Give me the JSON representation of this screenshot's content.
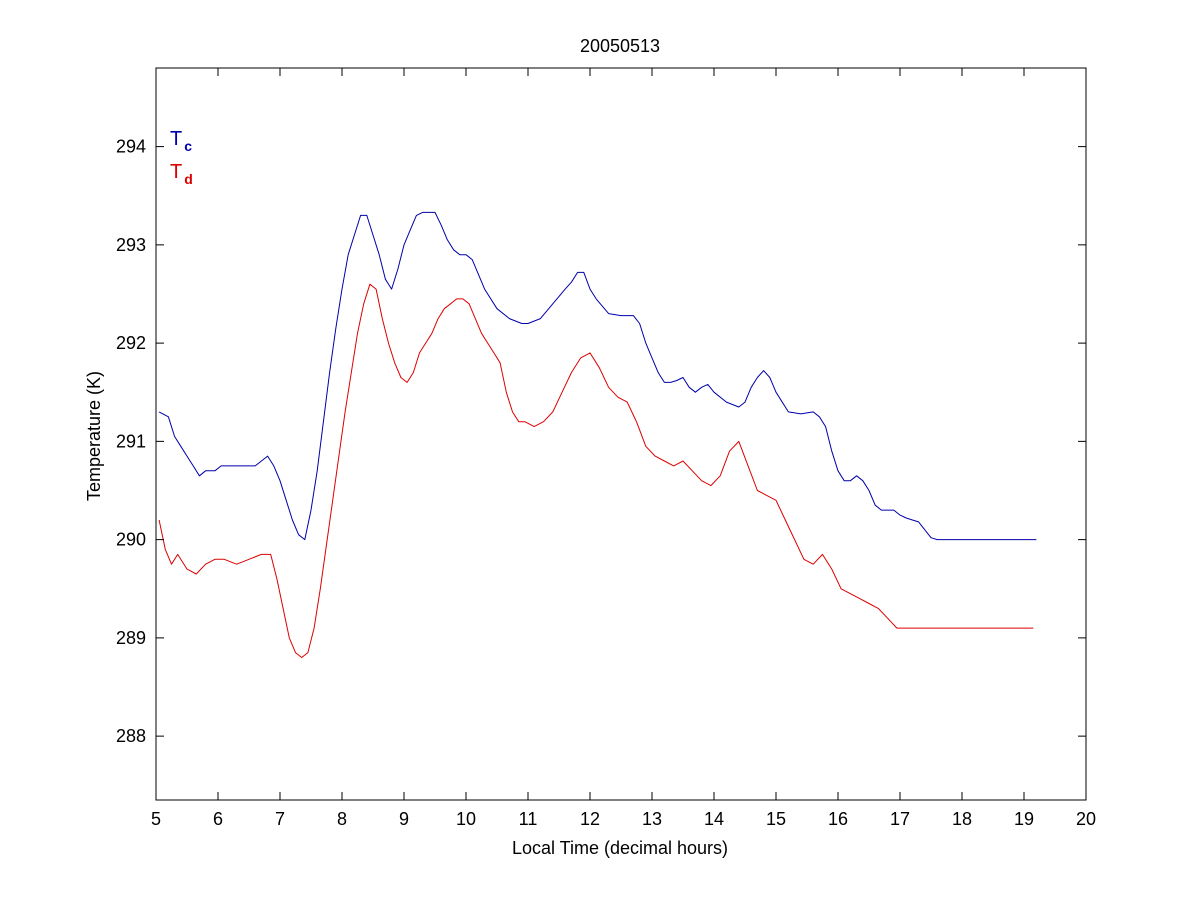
{
  "chart_data": {
    "type": "line",
    "title": "20050513",
    "xlabel": "Local Time (decimal hours)",
    "ylabel": "Temperature (K)",
    "xlim": [
      5,
      20
    ],
    "ylim": [
      287.35,
      294.8
    ],
    "xticks": [
      5,
      6,
      7,
      8,
      9,
      10,
      11,
      12,
      13,
      14,
      15,
      16,
      17,
      18,
      19,
      20
    ],
    "yticks": [
      288,
      289,
      290,
      291,
      292,
      293,
      294
    ],
    "grid": false,
    "legend_position": "top-left",
    "series": [
      {
        "name": "Tc",
        "legend_main": "T",
        "legend_sub": "c",
        "color": "#0000aa",
        "x": [
          5.05,
          5.2,
          5.3,
          5.4,
          5.5,
          5.6,
          5.7,
          5.8,
          5.95,
          6.05,
          6.2,
          6.4,
          6.6,
          6.8,
          6.9,
          7.0,
          7.1,
          7.2,
          7.3,
          7.4,
          7.5,
          7.6,
          7.7,
          7.8,
          7.9,
          8.0,
          8.1,
          8.2,
          8.3,
          8.4,
          8.5,
          8.6,
          8.7,
          8.8,
          8.9,
          9.0,
          9.1,
          9.2,
          9.3,
          9.4,
          9.5,
          9.6,
          9.7,
          9.8,
          9.9,
          10.0,
          10.1,
          10.2,
          10.3,
          10.5,
          10.7,
          10.9,
          11.0,
          11.2,
          11.4,
          11.6,
          11.7,
          11.8,
          11.9,
          12.0,
          12.1,
          12.3,
          12.5,
          12.7,
          12.8,
          12.9,
          13.0,
          13.1,
          13.2,
          13.3,
          13.4,
          13.5,
          13.6,
          13.7,
          13.8,
          13.9,
          14.0,
          14.2,
          14.4,
          14.5,
          14.6,
          14.7,
          14.8,
          14.9,
          15.0,
          15.2,
          15.4,
          15.6,
          15.7,
          15.8,
          15.9,
          16.0,
          16.1,
          16.2,
          16.3,
          16.4,
          16.5,
          16.6,
          16.7,
          16.8,
          16.9,
          17.0,
          17.1,
          17.2,
          17.3,
          17.4,
          17.5,
          17.6,
          17.7,
          17.8,
          17.9,
          18.0,
          18.1,
          18.2,
          18.3,
          18.4,
          18.6,
          18.8,
          18.9,
          19.0,
          19.1,
          19.2
        ],
        "values": [
          291.3,
          291.25,
          291.05,
          290.95,
          290.85,
          290.75,
          290.65,
          290.7,
          290.7,
          290.75,
          290.75,
          290.75,
          290.75,
          290.85,
          290.75,
          290.6,
          290.4,
          290.2,
          290.05,
          290.0,
          290.3,
          290.7,
          291.2,
          291.7,
          292.15,
          292.55,
          292.9,
          293.1,
          293.3,
          293.3,
          293.1,
          292.9,
          292.65,
          292.55,
          292.75,
          293.0,
          293.15,
          293.3,
          293.33,
          293.33,
          293.33,
          293.2,
          293.05,
          292.95,
          292.9,
          292.9,
          292.85,
          292.7,
          292.55,
          292.35,
          292.25,
          292.2,
          292.2,
          292.25,
          292.4,
          292.55,
          292.62,
          292.72,
          292.72,
          292.55,
          292.45,
          292.3,
          292.28,
          292.28,
          292.2,
          292.0,
          291.85,
          291.7,
          291.6,
          291.6,
          291.62,
          291.65,
          291.55,
          291.5,
          291.55,
          291.58,
          291.5,
          291.4,
          291.35,
          291.4,
          291.55,
          291.65,
          291.72,
          291.65,
          291.5,
          291.3,
          291.28,
          291.3,
          291.25,
          291.15,
          290.9,
          290.7,
          290.6,
          290.6,
          290.65,
          290.6,
          290.5,
          290.35,
          290.3,
          290.3,
          290.3,
          290.25,
          290.22,
          290.2,
          290.18,
          290.1,
          290.02,
          290.0,
          290.0,
          290.0,
          290.0,
          290.0,
          290.0,
          290.0,
          290.0,
          290.0,
          290.0,
          290.0,
          290.0,
          290.0,
          290.0,
          290.0
        ]
      },
      {
        "name": "Td",
        "legend_main": "T",
        "legend_sub": "d",
        "color": "#dd0000",
        "x": [
          5.05,
          5.15,
          5.25,
          5.35,
          5.5,
          5.65,
          5.8,
          5.95,
          6.1,
          6.3,
          6.5,
          6.7,
          6.85,
          6.95,
          7.05,
          7.15,
          7.25,
          7.35,
          7.45,
          7.55,
          7.65,
          7.75,
          7.85,
          7.95,
          8.05,
          8.15,
          8.25,
          8.35,
          8.45,
          8.55,
          8.65,
          8.75,
          8.85,
          8.95,
          9.05,
          9.15,
          9.25,
          9.35,
          9.45,
          9.55,
          9.65,
          9.75,
          9.85,
          9.95,
          10.05,
          10.15,
          10.25,
          10.35,
          10.45,
          10.55,
          10.65,
          10.75,
          10.85,
          10.95,
          11.1,
          11.25,
          11.4,
          11.55,
          11.7,
          11.85,
          12.0,
          12.15,
          12.3,
          12.45,
          12.6,
          12.75,
          12.9,
          13.05,
          13.2,
          13.35,
          13.5,
          13.65,
          13.8,
          13.95,
          14.1,
          14.25,
          14.4,
          14.55,
          14.7,
          14.85,
          15.0,
          15.15,
          15.3,
          15.45,
          15.6,
          15.75,
          15.9,
          16.05,
          16.2,
          16.35,
          16.5,
          16.65,
          16.8,
          16.95,
          17.1,
          17.25,
          17.4,
          17.55,
          17.7,
          17.85,
          18.0,
          18.15,
          18.3,
          18.45,
          18.6,
          18.75,
          18.9,
          19.05,
          19.15
        ],
        "values": [
          290.2,
          289.9,
          289.75,
          289.85,
          289.7,
          289.65,
          289.75,
          289.8,
          289.8,
          289.75,
          289.8,
          289.85,
          289.85,
          289.6,
          289.3,
          289.0,
          288.85,
          288.8,
          288.85,
          289.1,
          289.5,
          289.95,
          290.4,
          290.85,
          291.3,
          291.7,
          292.1,
          292.4,
          292.6,
          292.55,
          292.25,
          292.0,
          291.8,
          291.65,
          291.6,
          291.7,
          291.9,
          292.0,
          292.1,
          292.25,
          292.35,
          292.4,
          292.45,
          292.45,
          292.4,
          292.25,
          292.1,
          292.0,
          291.9,
          291.8,
          291.5,
          291.3,
          291.2,
          291.2,
          291.15,
          291.2,
          291.3,
          291.5,
          291.7,
          291.85,
          291.9,
          291.75,
          291.55,
          291.45,
          291.4,
          291.2,
          290.95,
          290.85,
          290.8,
          290.75,
          290.8,
          290.7,
          290.6,
          290.55,
          290.65,
          290.9,
          291.0,
          290.75,
          290.5,
          290.45,
          290.4,
          290.2,
          290.0,
          289.8,
          289.75,
          289.85,
          289.7,
          289.5,
          289.45,
          289.4,
          289.35,
          289.3,
          289.2,
          289.1,
          289.1,
          289.1,
          289.1,
          289.1,
          289.1,
          289.1,
          289.1,
          289.1,
          289.1,
          289.1,
          289.1,
          289.1,
          289.1,
          289.1,
          289.1
        ]
      }
    ]
  }
}
